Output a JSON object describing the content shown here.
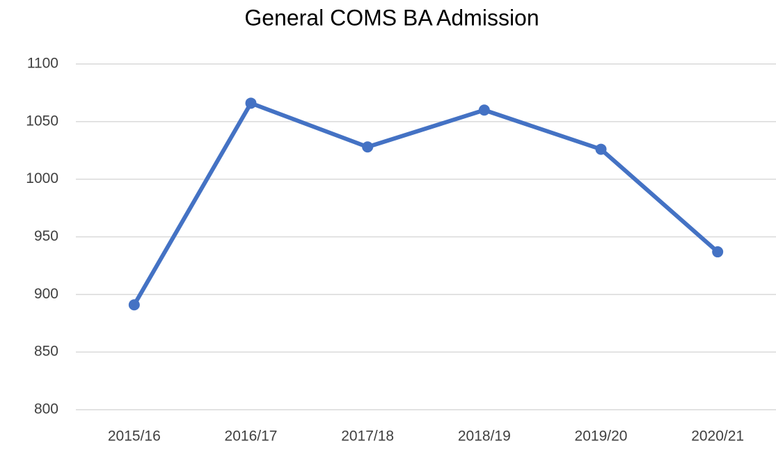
{
  "chart_data": {
    "type": "line",
    "title": "General COMS BA Admission",
    "categories": [
      "2015/16",
      "2016/17",
      "2017/18",
      "2018/19",
      "2019/20",
      "2020/21"
    ],
    "values": [
      891,
      1066,
      1028,
      1060,
      1026,
      937
    ],
    "color": "#4472c4",
    "ylim": [
      800,
      1100
    ],
    "yticks": [
      800,
      850,
      900,
      950,
      1000,
      1050,
      1100
    ],
    "grid": true
  }
}
